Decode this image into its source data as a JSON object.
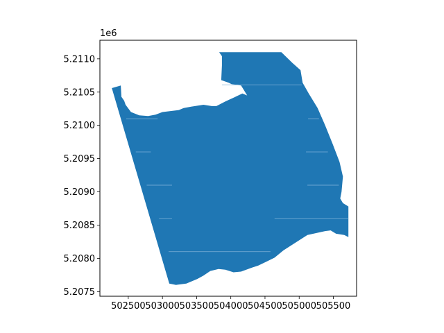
{
  "chart_data": {
    "type": "map",
    "title": "",
    "xlabel": "",
    "ylabel": "",
    "y_offset_label": "1e6",
    "xlim": [
      502085,
      505840
    ],
    "ylim": [
      5207430,
      5211280
    ],
    "grid": false,
    "legend": "none",
    "x_ticks": [
      {
        "value": 502500,
        "label": "502500"
      },
      {
        "value": 503000,
        "label": "503000"
      },
      {
        "value": 503500,
        "label": "503500"
      },
      {
        "value": 504000,
        "label": "504000"
      },
      {
        "value": 504500,
        "label": "504500"
      },
      {
        "value": 505000,
        "label": "505000"
      },
      {
        "value": 505500,
        "label": "505500"
      }
    ],
    "y_ticks": [
      {
        "value": 5207500,
        "label": "5.2075"
      },
      {
        "value": 5208000,
        "label": "5.2080"
      },
      {
        "value": 5208500,
        "label": "5.2085"
      },
      {
        "value": 5209000,
        "label": "5.2090"
      },
      {
        "value": 5209500,
        "label": "5.2095"
      },
      {
        "value": 5210000,
        "label": "5.2100"
      },
      {
        "value": 5210500,
        "label": "5.2105"
      },
      {
        "value": 5211000,
        "label": "5.2110"
      }
    ],
    "fill_color": "#1f77b4",
    "polygon": [
      [
        503970,
        5211100
      ],
      [
        504740,
        5211100
      ],
      [
        504900,
        5210940
      ],
      [
        505020,
        5210830
      ],
      [
        505050,
        5210640
      ],
      [
        505140,
        5210480
      ],
      [
        505270,
        5210260
      ],
      [
        505380,
        5210000
      ],
      [
        505490,
        5209720
      ],
      [
        505590,
        5209450
      ],
      [
        505640,
        5209230
      ],
      [
        505620,
        5209000
      ],
      [
        505600,
        5208900
      ],
      [
        505640,
        5208830
      ],
      [
        505720,
        5208780
      ],
      [
        505720,
        5208320
      ],
      [
        505660,
        5208350
      ],
      [
        505540,
        5208370
      ],
      [
        505460,
        5208420
      ],
      [
        505380,
        5208410
      ],
      [
        505120,
        5208350
      ],
      [
        504770,
        5208120
      ],
      [
        504640,
        5208010
      ],
      [
        504540,
        5207960
      ],
      [
        504400,
        5207890
      ],
      [
        504310,
        5207860
      ],
      [
        504150,
        5207800
      ],
      [
        504040,
        5207790
      ],
      [
        503920,
        5207830
      ],
      [
        503820,
        5207840
      ],
      [
        503700,
        5207810
      ],
      [
        503600,
        5207740
      ],
      [
        503510,
        5207690
      ],
      [
        503350,
        5207620
      ],
      [
        503200,
        5207600
      ],
      [
        503100,
        5207620
      ],
      [
        502260,
        5210560
      ],
      [
        502390,
        5210600
      ],
      [
        502400,
        5210430
      ],
      [
        502440,
        5210370
      ],
      [
        502460,
        5210310
      ],
      [
        502540,
        5210200
      ],
      [
        502660,
        5210150
      ],
      [
        502790,
        5210140
      ],
      [
        502900,
        5210160
      ],
      [
        503000,
        5210200
      ],
      [
        503240,
        5210230
      ],
      [
        503310,
        5210260
      ],
      [
        503420,
        5210280
      ],
      [
        503600,
        5210310
      ],
      [
        503720,
        5210290
      ],
      [
        503790,
        5210290
      ],
      [
        503920,
        5210360
      ],
      [
        504050,
        5210420
      ],
      [
        504170,
        5210480
      ],
      [
        504240,
        5210450
      ],
      [
        504150,
        5210600
      ],
      [
        504010,
        5210620
      ],
      [
        503970,
        5210640
      ],
      [
        503860,
        5210680
      ],
      [
        503870,
        5210900
      ],
      [
        503870,
        5211040
      ],
      [
        503830,
        5211100
      ]
    ],
    "interior_lines": [
      {
        "y": 5210610,
        "x": [
          503870,
          505040
        ]
      },
      {
        "y": 5210100,
        "x": [
          502470,
          502930
        ]
      },
      {
        "y": 5210100,
        "x": [
          505130,
          505290
        ]
      },
      {
        "y": 5209600,
        "x": [
          502610,
          502830
        ]
      },
      {
        "y": 5209600,
        "x": [
          505100,
          505420
        ]
      },
      {
        "y": 5209100,
        "x": [
          502770,
          503140
        ]
      },
      {
        "y": 5209100,
        "x": [
          505120,
          505580
        ]
      },
      {
        "y": 5208600,
        "x": [
          502950,
          503140
        ]
      },
      {
        "y": 5208600,
        "x": [
          504640,
          505720
        ]
      },
      {
        "y": 5208100,
        "x": [
          503090,
          504580
        ]
      }
    ]
  }
}
